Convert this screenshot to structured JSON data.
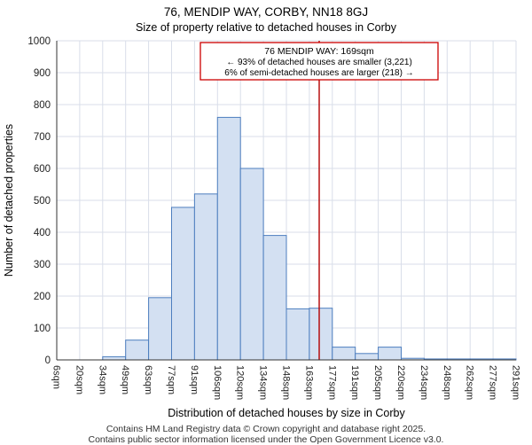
{
  "page": {
    "title": "76, MENDIP WAY, CORBY, NN18 8GJ",
    "subtitle": "Size of property relative to detached houses in Corby",
    "footer_lines": [
      "Contains HM Land Registry data © Crown copyright and database right 2025.",
      "Contains public sector information licensed under the Open Government Licence v3.0."
    ]
  },
  "chart_data": {
    "type": "bar",
    "title": "76, MENDIP WAY, CORBY, NN18 8GJ",
    "subtitle": "Size of property relative to detached houses in Corby",
    "xlabel": "Distribution of detached houses by size in Corby",
    "ylabel": "Number of detached properties",
    "ylim": [
      0,
      1000
    ],
    "ytick_step": 100,
    "categories": [
      "6sqm",
      "20sqm",
      "34sqm",
      "49sqm",
      "63sqm",
      "77sqm",
      "91sqm",
      "106sqm",
      "120sqm",
      "134sqm",
      "148sqm",
      "163sqm",
      "177sqm",
      "191sqm",
      "205sqm",
      "220sqm",
      "234sqm",
      "248sqm",
      "262sqm",
      "277sqm",
      "291sqm"
    ],
    "bin_edges_sqm": [
      6,
      20,
      34,
      49,
      63,
      77,
      91,
      106,
      120,
      134,
      148,
      163,
      177,
      191,
      205,
      220,
      234,
      248,
      262,
      277,
      291
    ],
    "values": [
      0,
      0,
      10,
      62,
      195,
      478,
      520,
      760,
      600,
      390,
      160,
      162,
      40,
      20,
      40,
      5,
      3,
      3,
      3,
      3
    ],
    "marker": {
      "sqm": 169,
      "color": "#b30000"
    },
    "annotation_lines": [
      "76 MENDIP WAY: 169sqm",
      "← 93% of detached houses are smaller (3,221)",
      "6% of semi-detached houses are larger (218) →"
    ],
    "grid": true,
    "legend": null,
    "colors": {
      "bar_fill": "#d3e0f2",
      "bar_stroke": "#4d7ebf",
      "grid": "#d9dee9",
      "axis": "#333333",
      "tick_text": "#222222",
      "marker": "#b30000",
      "annotation_border": "#cc0000",
      "annotation_bg": "#ffffff"
    }
  }
}
